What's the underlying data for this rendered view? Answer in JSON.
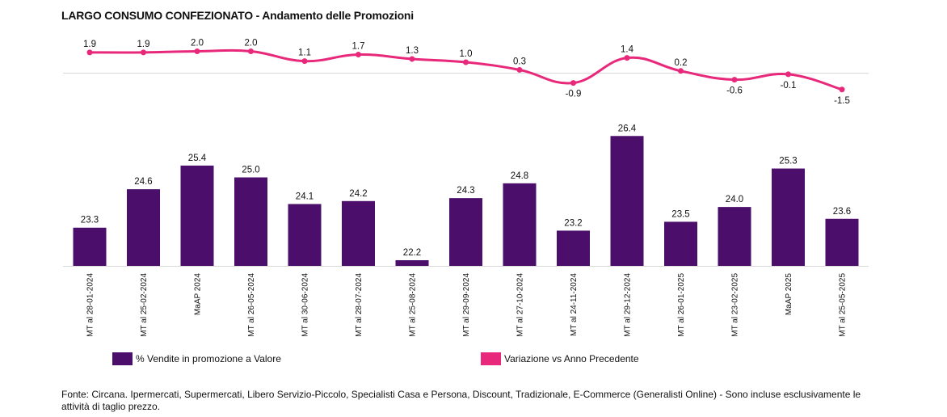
{
  "title": "LARGO CONSUMO CONFEZIONATO - Andamento delle Promozioni",
  "footnote": "Fonte: Circana. Ipermercati, Supermercati, Libero Servizio-Piccolo, Specialisti Casa e Persona, Discount, Tradizionale, E-Commerce (Generalisti Online) - Sono incluse esclusivamente le attività di taglio prezzo.",
  "colors": {
    "bar": "#4b0f6b",
    "line": "#e8287a",
    "axis": "#d9d9d9"
  },
  "legend": {
    "bar_label": "% Vendite in promozione a Valore",
    "line_label": "Variazione vs Anno Precedente"
  },
  "chart_data": {
    "type": "bar+line",
    "title": "LARGO CONSUMO CONFEZIONATO - Andamento delle Promozioni",
    "categories": [
      "MT al 28-01-2024",
      "MT al 25-02-2024",
      "MaAP 2024",
      "MT al 26-05-2024",
      "MT al 30-06-2024",
      "MT al 28-07-2024",
      "MT al 25-08-2024",
      "MT al 29-09-2024",
      "MT al 27-10-2024",
      "MT al 24-11-2024",
      "MT al 29-12-2024",
      "MT al 26-01-2025",
      "MT al 23-02-2025",
      "MaAP 2025",
      "MT al 25-05-2025"
    ],
    "series": [
      {
        "name": "% Vendite in promozione a Valore",
        "type": "bar",
        "values": [
          23.3,
          24.6,
          25.4,
          25.0,
          24.1,
          24.2,
          22.2,
          24.3,
          24.8,
          23.2,
          26.4,
          23.5,
          24.0,
          25.3,
          23.6
        ],
        "labels": [
          "23.3",
          "24.6",
          "25.4",
          "25.0",
          "24.1",
          "24.2",
          "22.2",
          "24.3",
          "24.8",
          "23.2",
          "26.4",
          "23.5",
          "24.0",
          "25.3",
          "23.6"
        ]
      },
      {
        "name": "Variazione vs Anno Precedente",
        "type": "line",
        "values": [
          1.9,
          1.9,
          2.0,
          2.0,
          1.1,
          1.7,
          1.3,
          1.0,
          0.3,
          -0.9,
          1.4,
          0.2,
          -0.6,
          -0.1,
          -1.5
        ],
        "labels": [
          "1.9",
          "1.9",
          "2.0",
          "2.0",
          "1.1",
          "1.7",
          "1.3",
          "1.0",
          "0.3",
          "-0.9",
          "1.4",
          "0.2",
          "-0.6",
          "-0.1",
          "-1.5"
        ]
      }
    ],
    "legend_position": "bottom",
    "grid": false
  }
}
